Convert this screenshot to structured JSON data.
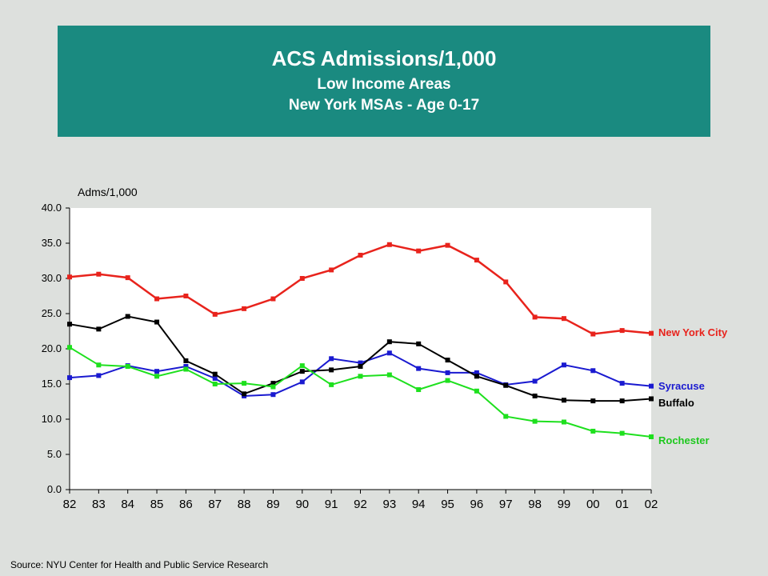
{
  "title": {
    "main": "ACS Admissions/1,000",
    "line2": "Low Income Areas",
    "line3": "New York MSAs - Age 0-17"
  },
  "source": "Source:  NYU Center for Health and Public Service Research",
  "chart_data": {
    "type": "line",
    "ylabel": "Adms/1,000",
    "ylim": [
      0,
      40
    ],
    "yticks": [
      "0.0",
      "5.0",
      "10.0",
      "15.0",
      "20.0",
      "25.0",
      "30.0",
      "35.0",
      "40.0"
    ],
    "categories": [
      "82",
      "83",
      "84",
      "85",
      "86",
      "87",
      "88",
      "89",
      "90",
      "91",
      "92",
      "93",
      "94",
      "95",
      "96",
      "97",
      "98",
      "99",
      "00",
      "01",
      "02"
    ],
    "grid": false,
    "legend": "right",
    "series": [
      {
        "name": "New York City",
        "color": "#e8231c",
        "label_color": "#e8231c",
        "values": [
          30.2,
          30.6,
          30.1,
          27.1,
          27.5,
          24.9,
          25.7,
          27.1,
          30.0,
          31.2,
          33.3,
          34.8,
          33.9,
          34.7,
          32.6,
          29.5,
          24.5,
          24.3,
          22.1,
          22.6,
          22.2
        ]
      },
      {
        "name": "Syracuse",
        "color": "#1a1ad0",
        "label_color": "#1a1ad0",
        "values": [
          15.9,
          16.2,
          17.6,
          16.8,
          17.5,
          15.8,
          13.3,
          13.5,
          15.3,
          18.6,
          18.0,
          19.4,
          17.2,
          16.6,
          16.6,
          14.9,
          15.4,
          17.7,
          16.9,
          15.1,
          14.7
        ]
      },
      {
        "name": "Buffalo",
        "color": "#000000",
        "label_color": "#000000",
        "values": [
          23.5,
          22.8,
          24.6,
          23.8,
          18.3,
          16.4,
          13.6,
          15.1,
          16.8,
          17.0,
          17.5,
          21.0,
          20.7,
          18.4,
          16.1,
          14.8,
          13.3,
          12.7,
          12.6,
          12.6,
          12.9
        ]
      },
      {
        "name": "Rochester",
        "color": "#1ee01e",
        "label_color": "#1ec81e",
        "values": [
          20.2,
          17.7,
          17.5,
          16.1,
          17.1,
          15.0,
          15.1,
          14.6,
          17.6,
          14.9,
          16.1,
          16.3,
          14.2,
          15.5,
          14.0,
          10.4,
          9.7,
          9.6,
          8.3,
          8.0,
          7.5
        ]
      }
    ]
  }
}
